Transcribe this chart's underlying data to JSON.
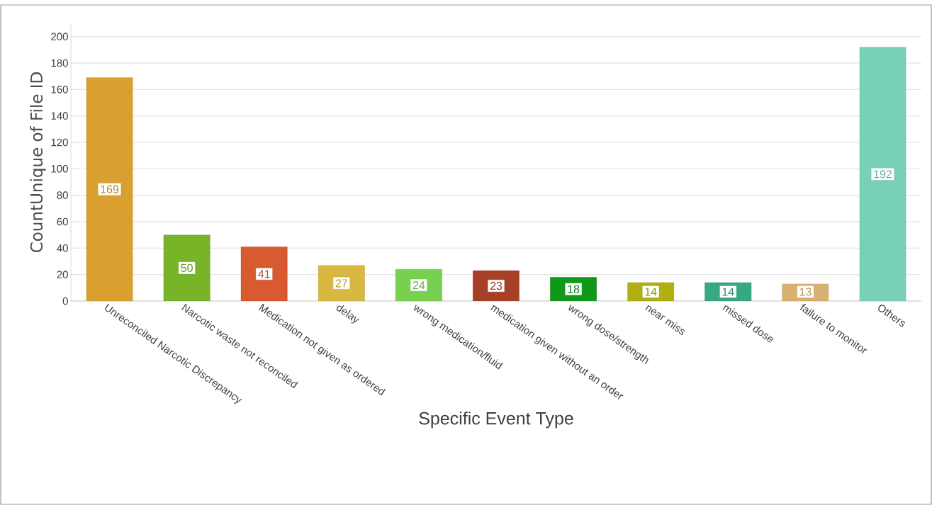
{
  "chart_data": {
    "type": "bar",
    "xlabel": "Specific Event Type",
    "ylabel": "CountUnique of File ID",
    "categories": [
      "Unreconciled Narcotic Discrepancy",
      "Narcotic waste not reconciled",
      "Medication not given as ordered",
      "delay",
      "wrong medication/fluid",
      "medication given without an order",
      "wrong dose/strength",
      "near miss",
      "missed dose",
      "failure to monitor",
      "Others"
    ],
    "values": [
      169,
      50,
      41,
      27,
      24,
      23,
      18,
      14,
      14,
      13,
      192
    ],
    "colors": [
      "#d9a030",
      "#78b428",
      "#d85a30",
      "#d8b840",
      "#78d050",
      "#a84028",
      "#109818",
      "#b0b010",
      "#38a880",
      "#d8b070",
      "#78d0b8"
    ],
    "ylim": [
      0,
      210
    ],
    "yticks": [
      0,
      20,
      40,
      60,
      80,
      100,
      120,
      140,
      160,
      180,
      200
    ],
    "grid": "y",
    "data_labels": true
  }
}
